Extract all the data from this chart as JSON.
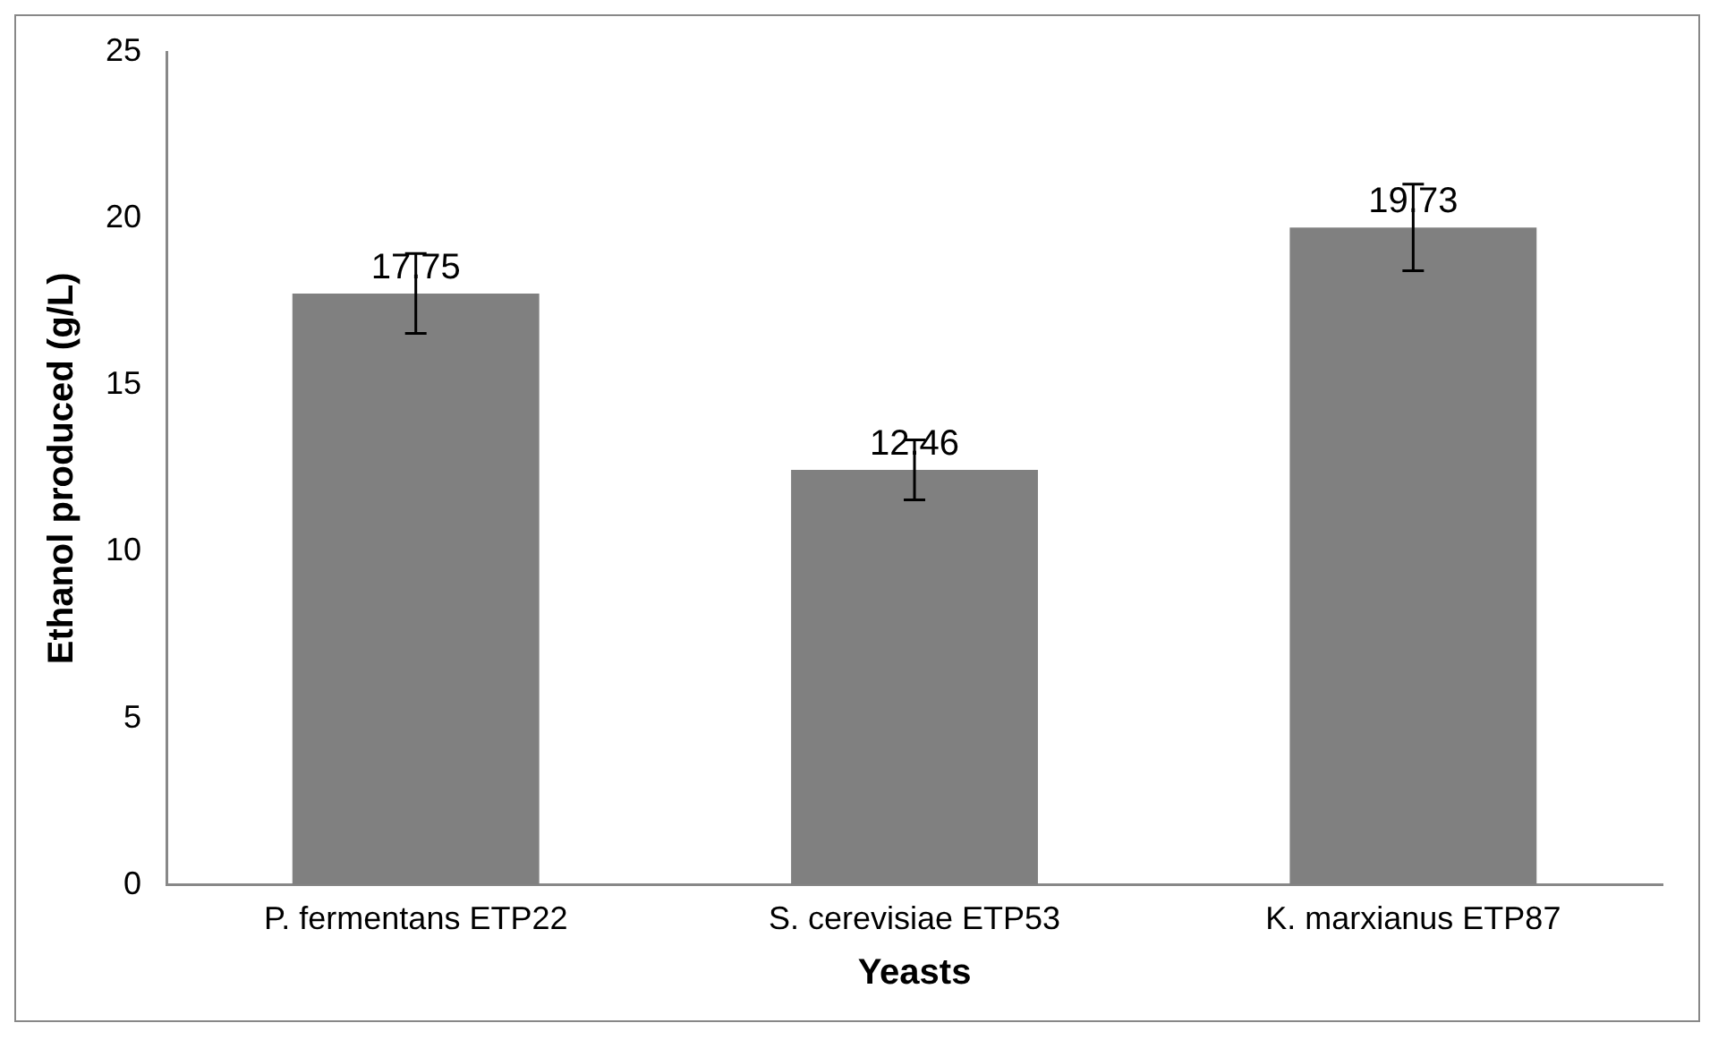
{
  "chart_data": {
    "type": "bar",
    "xlabel": "Yeasts",
    "ylabel": "Ethanol produced (g/L)",
    "categories": [
      "P. fermentans ETP22",
      "S. cerevisiae ETP53",
      "K. marxianus ETP87"
    ],
    "values": [
      17.75,
      12.46,
      19.73
    ],
    "color": "#808080",
    "errors": [
      1.2,
      0.9,
      1.3
    ],
    "ylim": [
      0,
      25
    ],
    "yticks": [
      0,
      5,
      10,
      15,
      20,
      25
    ],
    "grid": false,
    "legend": false,
    "data_labels": true
  }
}
